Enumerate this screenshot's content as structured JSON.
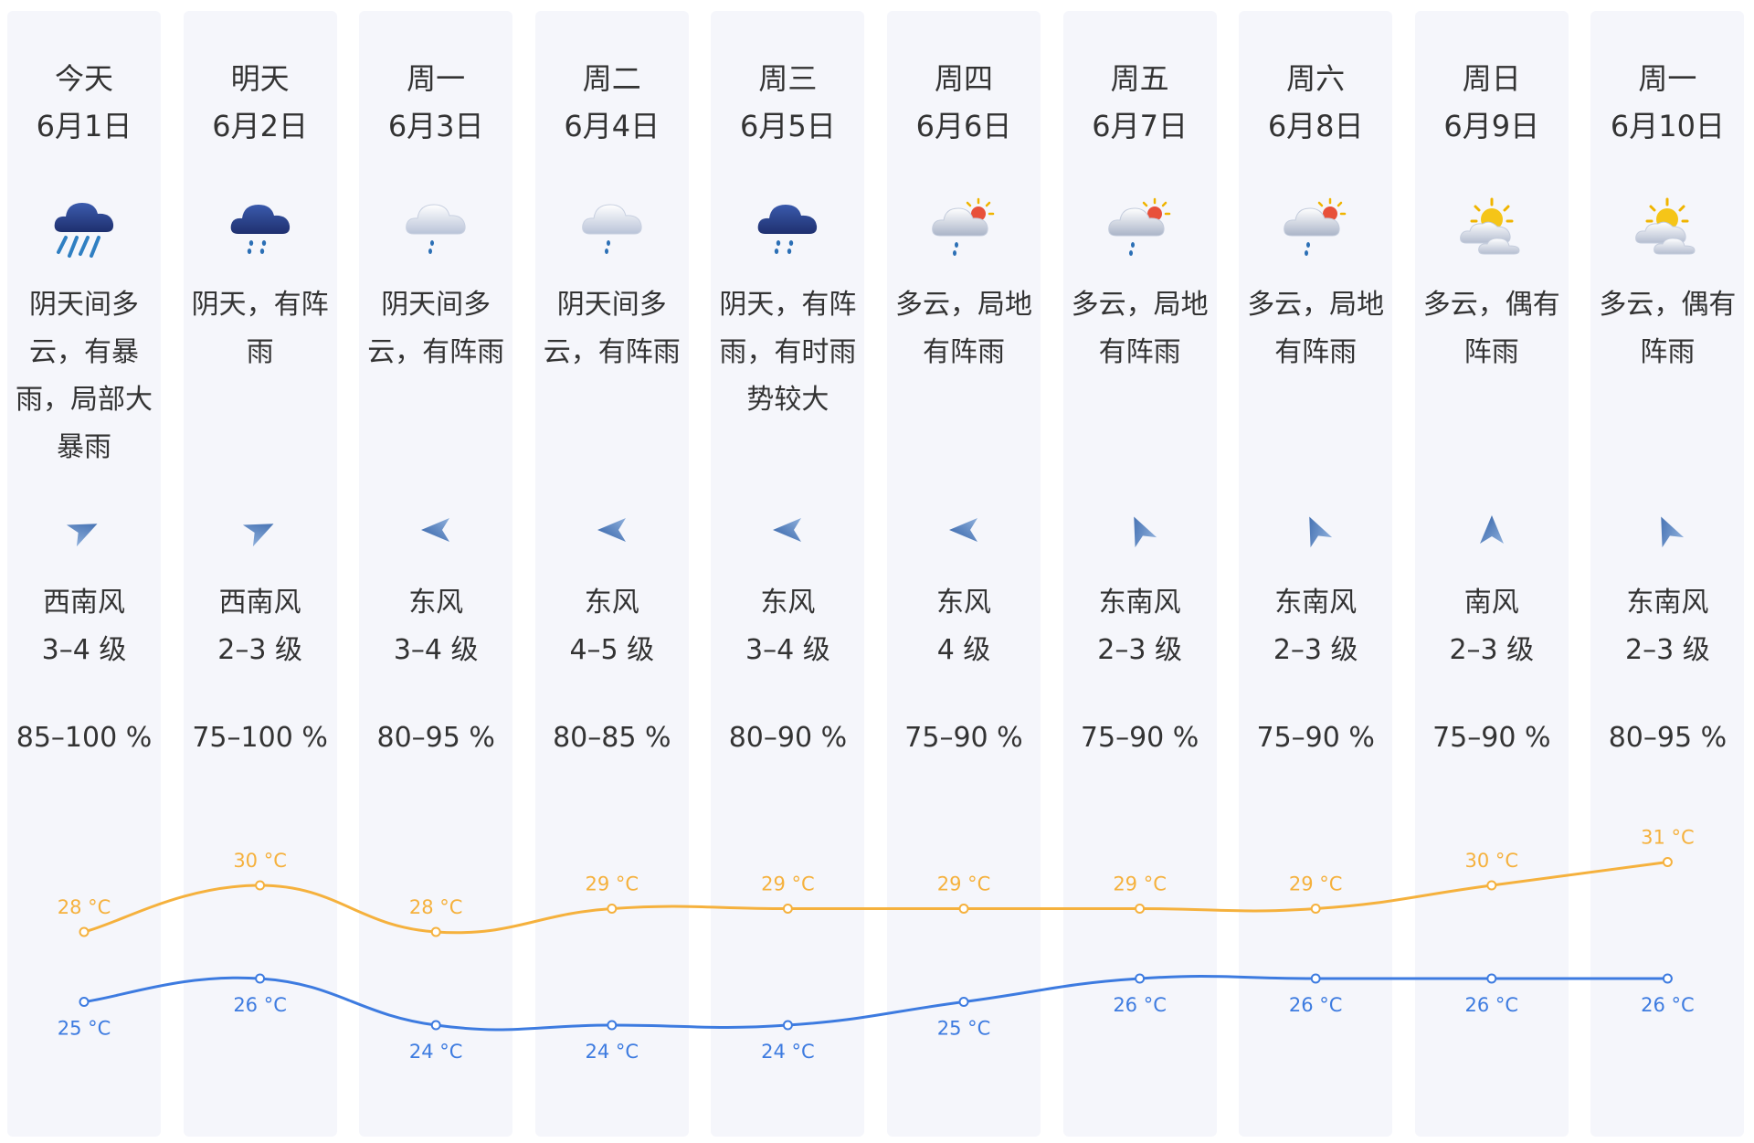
{
  "colors": {
    "high": "#f5b13d",
    "low": "#3d7be0",
    "text": "#333333",
    "column_bg": "#f5f6fb"
  },
  "days": [
    {
      "day": "今天",
      "date": "6月1日",
      "icon": "heavy-rain-icon",
      "desc": "阴天间多云，有暴雨，局部大暴雨",
      "wind_dir": "西南风",
      "wind_arrow_deg": 65,
      "wind_level": "3–4 级",
      "humidity": "85–100 %",
      "high": 28,
      "low": 25,
      "high_label": "28 °C",
      "low_label": "25 °C"
    },
    {
      "day": "明天",
      "date": "6月2日",
      "icon": "rain-icon",
      "desc": "阴天，有阵雨",
      "wind_dir": "西南风",
      "wind_arrow_deg": 65,
      "wind_level": "2–3 级",
      "humidity": "75–100 %",
      "high": 30,
      "low": 26,
      "high_label": "30 °C",
      "low_label": "26 °C"
    },
    {
      "day": "周一",
      "date": "6月3日",
      "icon": "light-rain-icon",
      "desc": "阴天间多云，有阵雨",
      "wind_dir": "东风",
      "wind_arrow_deg": -90,
      "wind_level": "3–4 级",
      "humidity": "80–95 %",
      "high": 28,
      "low": 24,
      "high_label": "28 °C",
      "low_label": "24 °C"
    },
    {
      "day": "周二",
      "date": "6月4日",
      "icon": "light-rain-icon",
      "desc": "阴天间多云，有阵雨",
      "wind_dir": "东风",
      "wind_arrow_deg": -90,
      "wind_level": "4–5 级",
      "humidity": "80–85 %",
      "high": 29,
      "low": 24,
      "high_label": "29 °C",
      "low_label": "24 °C"
    },
    {
      "day": "周三",
      "date": "6月5日",
      "icon": "rain-icon",
      "desc": "阴天，有阵雨，有时雨势较大",
      "wind_dir": "东风",
      "wind_arrow_deg": -90,
      "wind_level": "3–4 级",
      "humidity": "80–90 %",
      "high": 29,
      "low": 24,
      "high_label": "29 °C",
      "low_label": "24 °C"
    },
    {
      "day": "周四",
      "date": "6月6日",
      "icon": "partly-cloudy-rain-icon",
      "desc": "多云，局地有阵雨",
      "wind_dir": "东风",
      "wind_arrow_deg": -90,
      "wind_level": "4 级",
      "humidity": "75–90 %",
      "high": 29,
      "low": 25,
      "high_label": "29 °C",
      "low_label": "25 °C"
    },
    {
      "day": "周五",
      "date": "6月7日",
      "icon": "partly-cloudy-rain-icon",
      "desc": "多云，局地有阵雨",
      "wind_dir": "东南风",
      "wind_arrow_deg": -25,
      "wind_level": "2–3 级",
      "humidity": "75–90 %",
      "high": 29,
      "low": 26,
      "high_label": "29 °C",
      "low_label": "26 °C"
    },
    {
      "day": "周六",
      "date": "6月8日",
      "icon": "partly-cloudy-rain-icon",
      "desc": "多云，局地有阵雨",
      "wind_dir": "东南风",
      "wind_arrow_deg": -25,
      "wind_level": "2–3 级",
      "humidity": "75–90 %",
      "high": 29,
      "low": 26,
      "high_label": "29 °C",
      "low_label": "26 °C"
    },
    {
      "day": "周日",
      "date": "6月9日",
      "icon": "partly-cloudy-icon",
      "desc": "多云，偶有阵雨",
      "wind_dir": "南风",
      "wind_arrow_deg": 0,
      "wind_level": "2–3 级",
      "humidity": "75–90 %",
      "high": 30,
      "low": 26,
      "high_label": "30 °C",
      "low_label": "26 °C"
    },
    {
      "day": "周一",
      "date": "6月10日",
      "icon": "partly-cloudy-icon",
      "desc": "多云，偶有阵雨",
      "wind_dir": "东南风",
      "wind_arrow_deg": -25,
      "wind_level": "2–3 级",
      "humidity": "80–95 %",
      "high": 31,
      "low": 26,
      "high_label": "31 °C",
      "low_label": "26 °C"
    }
  ]
}
